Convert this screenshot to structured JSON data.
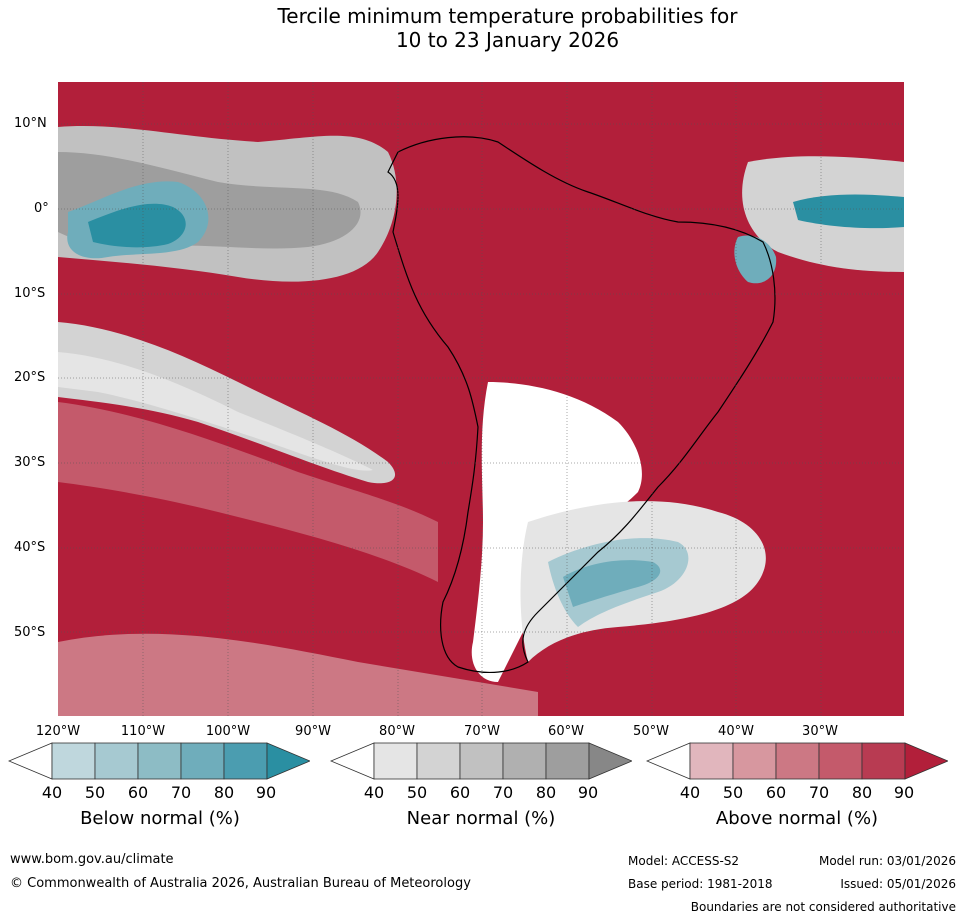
{
  "title": {
    "line1": "Tercile minimum temperature probabilities for",
    "line2": "10 to 23 January 2026"
  },
  "latitude_labels": [
    "10°N",
    "0°",
    "10°S",
    "20°S",
    "30°S",
    "40°S",
    "50°S"
  ],
  "longitude_labels": [
    "120°W",
    "110°W",
    "100°W",
    "90°W",
    "80°W",
    "70°W",
    "60°W",
    "50°W",
    "40°W",
    "30°W"
  ],
  "colorbars": [
    {
      "label": "Below normal (%)",
      "ticks": [
        "40",
        "50",
        "60",
        "70",
        "80",
        "90"
      ],
      "colors": [
        "#ffffff",
        "#bfd7dd",
        "#a6c9d1",
        "#8dbcc5",
        "#6fadbb",
        "#4b9db0",
        "#2a8fa2"
      ]
    },
    {
      "label": "Near normal (%)",
      "ticks": [
        "40",
        "50",
        "60",
        "70",
        "80",
        "90"
      ],
      "colors": [
        "#ffffff",
        "#e5e5e5",
        "#d3d3d3",
        "#c1c1c1",
        "#b0b0b0",
        "#9e9e9e",
        "#878787"
      ]
    },
    {
      "label": "Above normal (%)",
      "ticks": [
        "40",
        "50",
        "60",
        "70",
        "80",
        "90"
      ],
      "colors": [
        "#ffffff",
        "#e1b6bd",
        "#d7979f",
        "#cc7884",
        "#c45a6b",
        "#b83b52",
        "#b21f3a"
      ]
    }
  ],
  "map_colors": {
    "above_90": "#b21f3a",
    "above_80": "#b83b52",
    "above_70": "#c45a6b",
    "above_60": "#cc7884",
    "above_50": "#d7979f",
    "above_40": "#e1b6bd",
    "white": "#ffffff",
    "near_40": "#e5e5e5",
    "near_50": "#d3d3d3",
    "near_60": "#c1c1c1",
    "near_80": "#9e9e9e",
    "near_90": "#878787",
    "below_50": "#a6c9d1",
    "below_70": "#6fadbb",
    "below_90": "#2a8fa2"
  },
  "footer": {
    "website": "www.bom.gov.au/climate",
    "copyright": "© Commonwealth of Australia 2026, Australian Bureau of Meteorology",
    "model": "Model: ACCESS-S2",
    "model_run": "Model run: 03/01/2026",
    "base_period": "Base period: 1981-2018",
    "issued": "Issued: 05/01/2026",
    "disclaimer": "Boundaries are not considered authoritative"
  }
}
